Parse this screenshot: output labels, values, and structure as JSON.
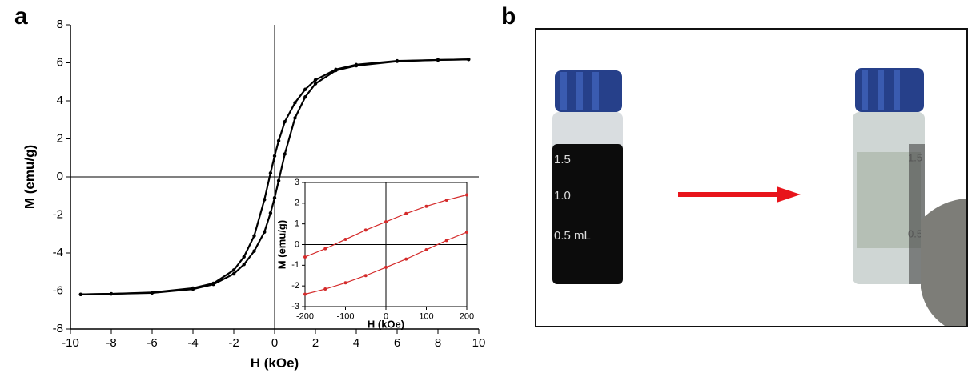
{
  "panel_labels": [
    "a",
    "b"
  ],
  "chart_data": [
    {
      "type": "line",
      "xlabel": "H (kOe)",
      "ylabel": "M (emu/g)",
      "x": [
        -9.5,
        -8,
        -6,
        -4,
        -3,
        -2,
        -1.5,
        -1,
        -0.5,
        -0.2,
        0,
        0.2,
        0.5,
        1,
        1.5,
        2,
        3,
        4,
        6,
        8,
        9.5
      ],
      "series": [
        {
          "color": "#000000",
          "values": [
            -6.18,
            -6.15,
            -6.08,
            -5.85,
            -5.6,
            -4.9,
            -4.2,
            -3.1,
            -1.2,
            0.2,
            1.1,
            1.9,
            2.9,
            3.9,
            4.6,
            5.1,
            5.65,
            5.9,
            6.1,
            6.15,
            6.18
          ]
        },
        {
          "color": "#000000",
          "values": [
            -6.18,
            -6.15,
            -6.1,
            -5.9,
            -5.65,
            -5.1,
            -4.6,
            -3.9,
            -2.9,
            -1.9,
            -1.1,
            -0.2,
            1.2,
            3.1,
            4.2,
            4.9,
            5.6,
            5.85,
            6.08,
            6.15,
            6.18
          ]
        }
      ],
      "xlim": [
        -10,
        10
      ],
      "xticks": [
        -10,
        -8,
        -6,
        -4,
        -2,
        0,
        2,
        4,
        6,
        8,
        10
      ],
      "ylim": [
        -8,
        8
      ],
      "yticks": [
        -8,
        -6,
        -4,
        -2,
        0,
        2,
        4,
        6,
        8
      ],
      "zero_lines": true
    },
    {
      "type": "line",
      "xlabel": "H (kOe)",
      "ylabel": "M (emu/g)",
      "x": [
        -200,
        -150,
        -100,
        -50,
        0,
        50,
        100,
        150,
        200
      ],
      "series": [
        {
          "color": "#d42a2a",
          "values": [
            -0.6,
            -0.2,
            0.25,
            0.7,
            1.1,
            1.5,
            1.85,
            2.15,
            2.4
          ]
        },
        {
          "color": "#d42a2a",
          "values": [
            -2.4,
            -2.15,
            -1.85,
            -1.5,
            -1.1,
            -0.7,
            -0.25,
            0.2,
            0.6
          ]
        }
      ],
      "xlim": [
        -200,
        200
      ],
      "xticks": [
        -200,
        -100,
        0,
        100,
        200
      ],
      "ylim": [
        -3,
        3
      ],
      "yticks": [
        -3,
        -2,
        -1,
        0,
        1,
        2,
        3
      ],
      "zero_lines": true
    }
  ],
  "photo": {
    "left_vial_marks": [
      "1.5",
      "1.0",
      "0.5 mL"
    ],
    "right_vial_marks": [
      "1.5",
      "0.5"
    ]
  }
}
